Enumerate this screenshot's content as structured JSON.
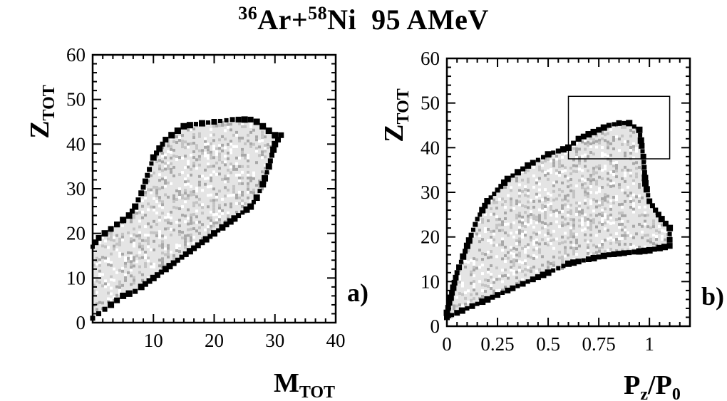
{
  "title": {
    "projectile_mass": "36",
    "projectile": "Ar+",
    "target_mass": "58",
    "target": "Ni",
    "energy": "95 AMeV"
  },
  "chart_data": [
    {
      "type": "heatmap",
      "panel_label": "a)",
      "xlabel": "M",
      "xlabel_sub": "TOT",
      "ylabel": "Z",
      "ylabel_sub": "TOT",
      "xlim": [
        0,
        40
      ],
      "ylim": [
        0,
        60
      ],
      "xticks": [
        10,
        20,
        30,
        40
      ],
      "yticks": [
        0,
        10,
        20,
        30,
        40,
        50,
        60
      ],
      "xtick_labels": [
        "10",
        "20",
        "30",
        "40"
      ],
      "ytick_labels": [
        "0",
        "10",
        "20",
        "30",
        "40",
        "50",
        "60"
      ],
      "grid": false,
      "upper_edge": [
        [
          0,
          17
        ],
        [
          1,
          19
        ],
        [
          2,
          20
        ],
        [
          3,
          21
        ],
        [
          4,
          22
        ],
        [
          5,
          23
        ],
        [
          6,
          24
        ],
        [
          7,
          26
        ],
        [
          8,
          29
        ],
        [
          9,
          33
        ],
        [
          10,
          37
        ],
        [
          11,
          39
        ],
        [
          12,
          41
        ],
        [
          13,
          42
        ],
        [
          14,
          43
        ],
        [
          15,
          44
        ],
        [
          17,
          44.5
        ],
        [
          20,
          45
        ],
        [
          23,
          45.5
        ],
        [
          26,
          45.5
        ],
        [
          27,
          45
        ],
        [
          28,
          44
        ],
        [
          29,
          43
        ],
        [
          30,
          42
        ],
        [
          31,
          42
        ]
      ],
      "lower_edge": [
        [
          0,
          1
        ],
        [
          1,
          2
        ],
        [
          2,
          3
        ],
        [
          3,
          4
        ],
        [
          4,
          5
        ],
        [
          5,
          6
        ],
        [
          6,
          6.5
        ],
        [
          7,
          7
        ],
        [
          8,
          8
        ],
        [
          10,
          10
        ],
        [
          12,
          12
        ],
        [
          14,
          14
        ],
        [
          16,
          16
        ],
        [
          18,
          18
        ],
        [
          20,
          20
        ],
        [
          22,
          22
        ],
        [
          24,
          24
        ],
        [
          26,
          26
        ],
        [
          27,
          28
        ],
        [
          28,
          31
        ],
        [
          29,
          35
        ],
        [
          30,
          40
        ],
        [
          31,
          42
        ]
      ]
    },
    {
      "type": "heatmap",
      "panel_label": "b)",
      "xlabel": "P",
      "xlabel_sub": "z",
      "xlabel_sep": "/P",
      "xlabel_sub2": "0",
      "ylabel": "Z",
      "ylabel_sub": "TOT",
      "xlim": [
        0,
        1.2
      ],
      "ylim": [
        0,
        60
      ],
      "xticks": [
        0,
        0.25,
        0.5,
        0.75,
        1
      ],
      "yticks": [
        0,
        10,
        20,
        30,
        40,
        50,
        60
      ],
      "xtick_labels": [
        "0",
        "0.25",
        "0.5",
        "0.75",
        "1"
      ],
      "ytick_labels": [
        "0",
        "10",
        "20",
        "30",
        "40",
        "50",
        "60"
      ],
      "grid": false,
      "upper_edge": [
        [
          0,
          3
        ],
        [
          0.05,
          12
        ],
        [
          0.1,
          18
        ],
        [
          0.15,
          24
        ],
        [
          0.2,
          28
        ],
        [
          0.3,
          33
        ],
        [
          0.4,
          36
        ],
        [
          0.5,
          38.5
        ],
        [
          0.6,
          40
        ],
        [
          0.65,
          42
        ],
        [
          0.7,
          43
        ],
        [
          0.75,
          44
        ],
        [
          0.8,
          45
        ],
        [
          0.85,
          45.5
        ],
        [
          0.9,
          45.5
        ],
        [
          0.95,
          44
        ],
        [
          0.97,
          38
        ],
        [
          0.98,
          32
        ],
        [
          1.0,
          28
        ],
        [
          1.03,
          26
        ],
        [
          1.06,
          24
        ],
        [
          1.1,
          22
        ],
        [
          1.1,
          18
        ]
      ],
      "lower_edge": [
        [
          0,
          2
        ],
        [
          0.1,
          4
        ],
        [
          0.2,
          6
        ],
        [
          0.3,
          8
        ],
        [
          0.4,
          10
        ],
        [
          0.5,
          12
        ],
        [
          0.6,
          14
        ],
        [
          0.7,
          15
        ],
        [
          0.8,
          16
        ],
        [
          0.9,
          16.5
        ],
        [
          1.0,
          17
        ],
        [
          1.05,
          17.5
        ],
        [
          1.1,
          18
        ]
      ],
      "selection_box": {
        "x": [
          0.6,
          1.1
        ],
        "y": [
          37.5,
          51.5
        ]
      }
    }
  ]
}
